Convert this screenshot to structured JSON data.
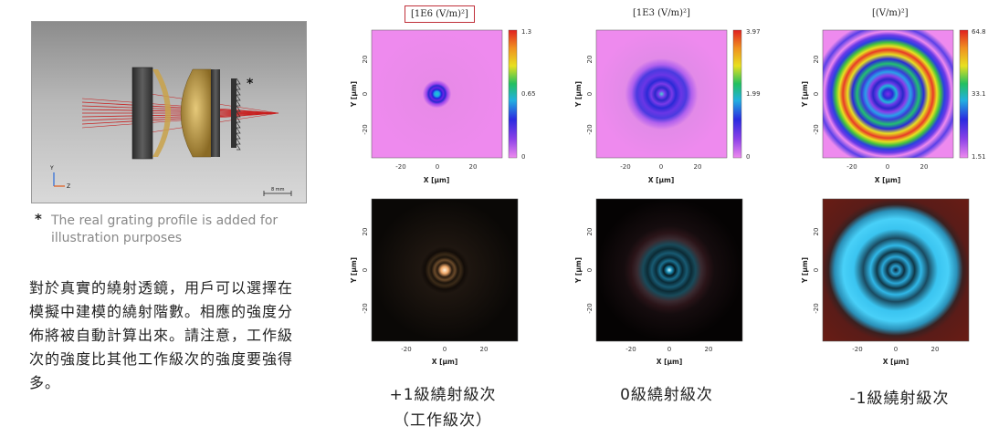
{
  "setup": {
    "marker": "*",
    "scale_label": "8 mm",
    "axis_y": "Y",
    "axis_z": "Z",
    "note_marker": "*",
    "note": "The real grating profile is added for illustration purposes"
  },
  "description": "對於真實的繞射透鏡，用戶可以選擇在模擬中建模的繞射階數。相應的強度分佈將被自動計算出來。請注意，工作級次的強度比其他工作級次的強度要強得多。",
  "plots": [
    {
      "title": "[1E6 (V/m)²]",
      "title_boxed": true,
      "colorbar_ticks": [
        "1.3",
        "0.65",
        "0"
      ],
      "xlabel": "X [µm]",
      "ylabel": "Y [µm]",
      "xticks": [
        "-20",
        "0",
        "20"
      ],
      "yticks": [
        "20",
        "0",
        "-20"
      ],
      "bottom_xticks": [
        "-20",
        "0",
        "20"
      ],
      "bottom_yticks": [
        "20",
        "0",
        "-20"
      ],
      "caption_line1": "+1級繞射級次",
      "caption_line2": "（工作級次）"
    },
    {
      "title": "[1E3 (V/m)²]",
      "title_boxed": false,
      "colorbar_ticks": [
        "3.97",
        "1.99",
        "0"
      ],
      "xlabel": "X [µm]",
      "ylabel": "Y [µm]",
      "xticks": [
        "-20",
        "0",
        "20"
      ],
      "yticks": [
        "20",
        "0",
        "-20"
      ],
      "bottom_xticks": [
        "-20",
        "0",
        "20"
      ],
      "bottom_yticks": [
        "20",
        "0",
        "-20"
      ],
      "caption_line1": "0級繞射級次",
      "caption_line2": ""
    },
    {
      "title": "[(V/m)²]",
      "title_boxed": false,
      "colorbar_ticks": [
        "64.8",
        "33.1",
        "1.51"
      ],
      "xlabel": "X [µm]",
      "ylabel": "Y [µm]",
      "xticks": [
        "-20",
        "0",
        "20"
      ],
      "yticks": [
        "20",
        "0",
        "-20"
      ],
      "bottom_xticks": [
        "-20",
        "0",
        "20"
      ],
      "bottom_yticks": [
        "20",
        "0",
        "-20"
      ],
      "caption_line1": "-1級繞射級次",
      "caption_line2": ""
    }
  ],
  "colors": {
    "box_border": "#c0303a",
    "lens": "#3c3c3c",
    "asphere": "#c9a24a",
    "ray": "#c81e1e"
  }
}
